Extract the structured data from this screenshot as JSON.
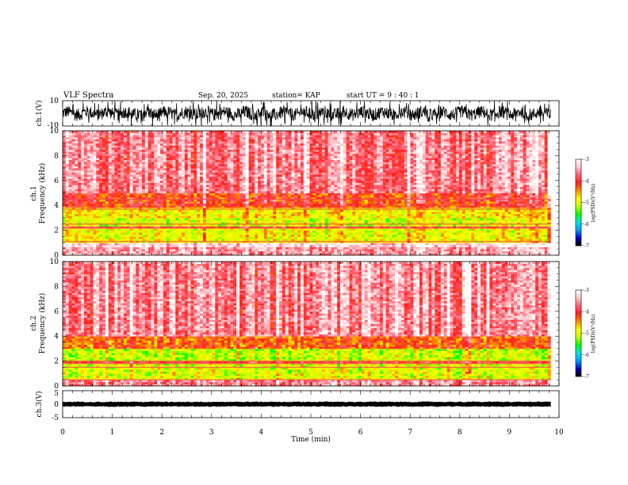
{
  "header": {
    "title": "VLF Spectra",
    "date": "Sep. 20, 2025",
    "station": "station= KAP",
    "start": "start  UT =  9 : 40 : 1"
  },
  "colors": {
    "trace": "#000000",
    "colormap": [
      "#000000",
      "#0000c8",
      "#00a0ff",
      "#00e6e6",
      "#00ff00",
      "#c8ff00",
      "#ffff00",
      "#ff8c00",
      "#ff2020",
      "#ff6070",
      "#ffc8cc",
      "#ffffff"
    ]
  },
  "chart_data": [
    {
      "type": "line",
      "name": "ch1-waveform",
      "ylabel": "ch.1(V)",
      "ylim": [
        -10,
        10
      ],
      "yticks": [
        "10",
        "-10"
      ],
      "xlim": [
        0,
        10
      ],
      "amplitude_typical": [
        -5,
        5
      ]
    },
    {
      "type": "heatmap",
      "name": "ch1-spectrogram",
      "ylabel_lines": [
        "ch.1",
        "Frequency  (kHz)"
      ],
      "ylim": [
        0,
        10
      ],
      "yticks": [
        "0",
        "2",
        "4",
        "6",
        "8",
        "10"
      ],
      "xlim": [
        0,
        10
      ],
      "data_extent_min": 9.83,
      "colorbar": {
        "label": "log(PSD)(V²/Hz)",
        "range": [
          -7,
          -3
        ],
        "ticks": [
          "-3",
          "-4",
          "-5",
          "-6",
          "-7"
        ]
      },
      "bands_khz": [
        {
          "from": 0,
          "to": 0.6,
          "level": -3.5
        },
        {
          "from": 0.6,
          "to": 1.0,
          "level": -3.2
        },
        {
          "from": 1.0,
          "to": 2.2,
          "level": -4.9
        },
        {
          "from": 2.2,
          "to": 2.4,
          "level": -3.9
        },
        {
          "from": 2.4,
          "to": 3.0,
          "level": -5.0
        },
        {
          "from": 3.0,
          "to": 3.8,
          "level": -4.8
        },
        {
          "from": 3.8,
          "to": 5.0,
          "level": -4.1
        },
        {
          "from": 5.0,
          "to": 10.0,
          "level": -3.6
        }
      ],
      "lines_khz": [
        1.1,
        2.2,
        2.5,
        3.7,
        4.5
      ]
    },
    {
      "type": "heatmap",
      "name": "ch2-spectrogram",
      "ylabel_lines": [
        "ch.2",
        "Frequency  (kHz)"
      ],
      "ylim": [
        0,
        10
      ],
      "yticks": [
        "0",
        "2",
        "4",
        "6",
        "8",
        "10"
      ],
      "xlim": [
        0,
        10
      ],
      "data_extent_min": 9.83,
      "colorbar": {
        "label": "log(PSD)(V²/Hz)",
        "range": [
          -7,
          -3
        ],
        "ticks": [
          "-3",
          "-4",
          "-5",
          "-6",
          "-7"
        ]
      },
      "bands_khz": [
        {
          "from": 0,
          "to": 0.5,
          "level": -3.6
        },
        {
          "from": 0.5,
          "to": 1.8,
          "level": -5.0
        },
        {
          "from": 1.8,
          "to": 2.0,
          "level": -4.0
        },
        {
          "from": 2.0,
          "to": 3.0,
          "level": -5.1
        },
        {
          "from": 3.0,
          "to": 4.0,
          "level": -4.3
        },
        {
          "from": 4.0,
          "to": 10.0,
          "level": -3.6
        }
      ],
      "lines_khz": [
        0.5,
        1.5,
        1.8,
        2.0
      ]
    },
    {
      "type": "line",
      "name": "ch3-waveform",
      "ylabel": "ch.3(V)",
      "ylim": [
        -5,
        5
      ],
      "yticks": [
        "5",
        "0",
        "-5"
      ],
      "xlim": [
        0,
        10
      ],
      "amplitude_typical": [
        -0.8,
        0.8
      ]
    }
  ],
  "xaxis": {
    "label": "Time  (min)",
    "ticks": [
      "0",
      "1",
      "2",
      "3",
      "4",
      "5",
      "6",
      "7",
      "8",
      "9",
      "10"
    ],
    "range": [
      0,
      10
    ]
  }
}
